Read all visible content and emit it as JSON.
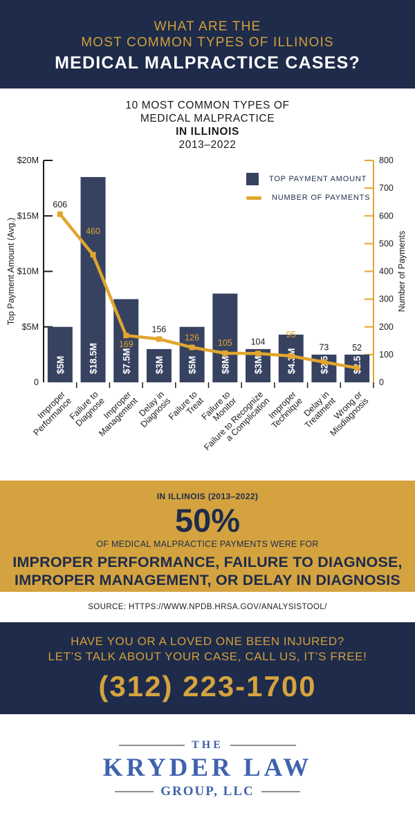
{
  "header": {
    "line1": "WHAT ARE THE",
    "line2": "MOST COMMON TYPES OF ILLINOIS",
    "line3": "MEDICAL MALPRACTICE CASES?"
  },
  "chart": {
    "title_line1": "10 MOST COMMON TYPES OF",
    "title_line2": "MEDICAL MALPRACTICE",
    "title_line3": "IN ILLINOIS",
    "title_line4": "2013–2022"
  },
  "chart_data": {
    "type": "bar+line",
    "title": "10 Most Common Types of Medical Malpractice in Illinois 2013–2022",
    "categories": [
      "Improper Performance",
      "Failure to Diagnose",
      "Improper Management",
      "Delay in Diagnosis",
      "Failure to Treat",
      "Failure to Monitor",
      "Failure to Recognize a Complication",
      "Improper Technique",
      "Delay in Treatment",
      "Wrong or Misdiagnosis"
    ],
    "category_lines": [
      [
        "Improper",
        "Performance"
      ],
      [
        "Failure to",
        "Diagnose"
      ],
      [
        "Improper",
        "Management"
      ],
      [
        "Delay in",
        "Diagnosis"
      ],
      [
        "Failure to",
        "Treat"
      ],
      [
        "Failure to",
        "Monitor"
      ],
      [
        "Failure to Recognize",
        "a Complication"
      ],
      [
        "Improper",
        "Technique"
      ],
      [
        "Delay in",
        "Treatment"
      ],
      [
        "Wrong or",
        "Misdiagnosis"
      ]
    ],
    "series": [
      {
        "name": "TOP PAYMENT AMOUNT",
        "type": "bar",
        "axis": "left",
        "values": [
          5,
          18.5,
          7.5,
          3,
          5,
          8,
          3,
          4.3,
          2.5,
          2.5
        ],
        "bar_labels": [
          "$5M",
          "$18.5M",
          "$7.5M",
          "$3M",
          "$5M",
          "$8M",
          "$3M",
          "$4.3M",
          "$2.5",
          "$2.5"
        ]
      },
      {
        "name": "NUMBER OF PAYMENTS",
        "type": "line",
        "axis": "right",
        "values": [
          606,
          460,
          169,
          156,
          126,
          105,
          104,
          95,
          73,
          52
        ],
        "label_colors": [
          "dark",
          "gold",
          "gold",
          "dark",
          "gold",
          "gold",
          "dark",
          "gold",
          "dark",
          "dark"
        ],
        "label_dy": [
          -10,
          -30,
          17,
          -10,
          -10,
          -11,
          -13,
          -27,
          -17,
          -25
        ]
      }
    ],
    "left_axis": {
      "label": "Top Payment Amount (Avg.)",
      "ticks": [
        "$20M",
        "$15M",
        "$10M",
        "$5M",
        "0"
      ],
      "tick_values": [
        20,
        15,
        10,
        5,
        0
      ],
      "max": 20
    },
    "right_axis": {
      "label": "Number of Payments",
      "ticks": [
        "800",
        "700",
        "600",
        "500",
        "400",
        "300",
        "200",
        "100",
        "0"
      ],
      "tick_values": [
        800,
        700,
        600,
        500,
        400,
        300,
        200,
        100,
        0
      ],
      "max": 800
    },
    "grid": false,
    "legend_position": "upper-right-inside"
  },
  "stat": {
    "kicker": "IN ILLINOIS (2013–2022)",
    "percent": "50%",
    "sub": "OF MEDICAL MALPRACTICE PAYMENTS WERE FOR",
    "line1": "IMPROPER PERFORMANCE, FAILURE TO DIAGNOSE,",
    "line2": "IMPROPER MANAGEMENT, OR DELAY IN DIAGNOSIS"
  },
  "source": {
    "text": "SOURCE: HTTPS://WWW.NPDB.HRSA.GOV/ANALYSISTOOL/"
  },
  "cta": {
    "line1": "HAVE YOU OR A LOVED ONE BEEN INJURED?",
    "line2": "LET’S TALK ABOUT YOUR CASE, CALL US, IT’S FREE!",
    "phone": "(312)  223-1700"
  },
  "footer": {
    "the": "THE",
    "name": "KRYDER LAW",
    "suffix": "GROUP, LLC"
  },
  "colors": {
    "navy": "#1e2b4a",
    "bar": "#364260",
    "gold_band": "#d4a33f",
    "gold_line": "#e1a62f",
    "gold_text": "#d2a03a",
    "logo_blue": "#3f62ac",
    "rule_gray": "#8e8e8e",
    "ink": "#1a1a1a"
  }
}
